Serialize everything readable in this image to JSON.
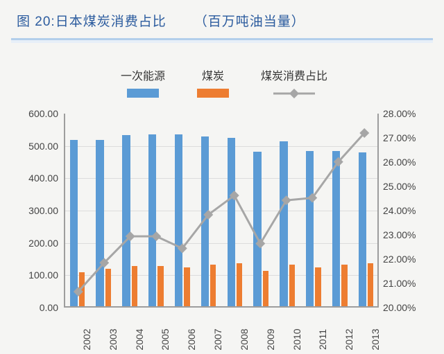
{
  "title_prefix": "图 20:",
  "title_main": "日本煤炭消费占比",
  "title_unit": "（百万吨油当量）",
  "legend": {
    "primary": "一次能源",
    "coal": "煤炭",
    "ratio": "煤炭消费占比"
  },
  "chart": {
    "type": "bar+line-dual-axis",
    "background_color": "#f5f5f3",
    "grid_color": "#dcdcdc",
    "axis_color": "#9d9d9d",
    "font_size_axis": 14,
    "font_size_title": 19,
    "title_color": "#2b5b9e",
    "categories": [
      "2002",
      "2003",
      "2004",
      "2005",
      "2006",
      "2007",
      "2008",
      "2009",
      "2010",
      "2011",
      "2012",
      "2013"
    ],
    "y_left": {
      "min": 0,
      "max": 600,
      "step": 100,
      "format": ".2f"
    },
    "y_right": {
      "min": 20,
      "max": 28,
      "step": 1,
      "format": ".2f%",
      "suffix": "%"
    },
    "series": {
      "primary_energy": {
        "color": "#5b9bd5",
        "bar_width_frac": 0.3,
        "values": [
          515,
          515,
          530,
          532,
          532,
          525,
          520,
          478,
          510,
          480,
          480,
          475
        ]
      },
      "coal": {
        "color": "#ed7d31",
        "bar_width_frac": 0.22,
        "values": [
          105,
          115,
          125,
          125,
          120,
          128,
          132,
          110,
          128,
          120,
          128,
          132
        ]
      },
      "coal_ratio": {
        "color": "#a6a6a6",
        "line_width": 3,
        "marker_size": 10,
        "marker_shape": "diamond",
        "values": [
          20.6,
          21.8,
          22.9,
          22.9,
          22.4,
          23.8,
          24.6,
          22.6,
          24.4,
          24.5,
          26.0,
          27.2
        ]
      }
    }
  }
}
